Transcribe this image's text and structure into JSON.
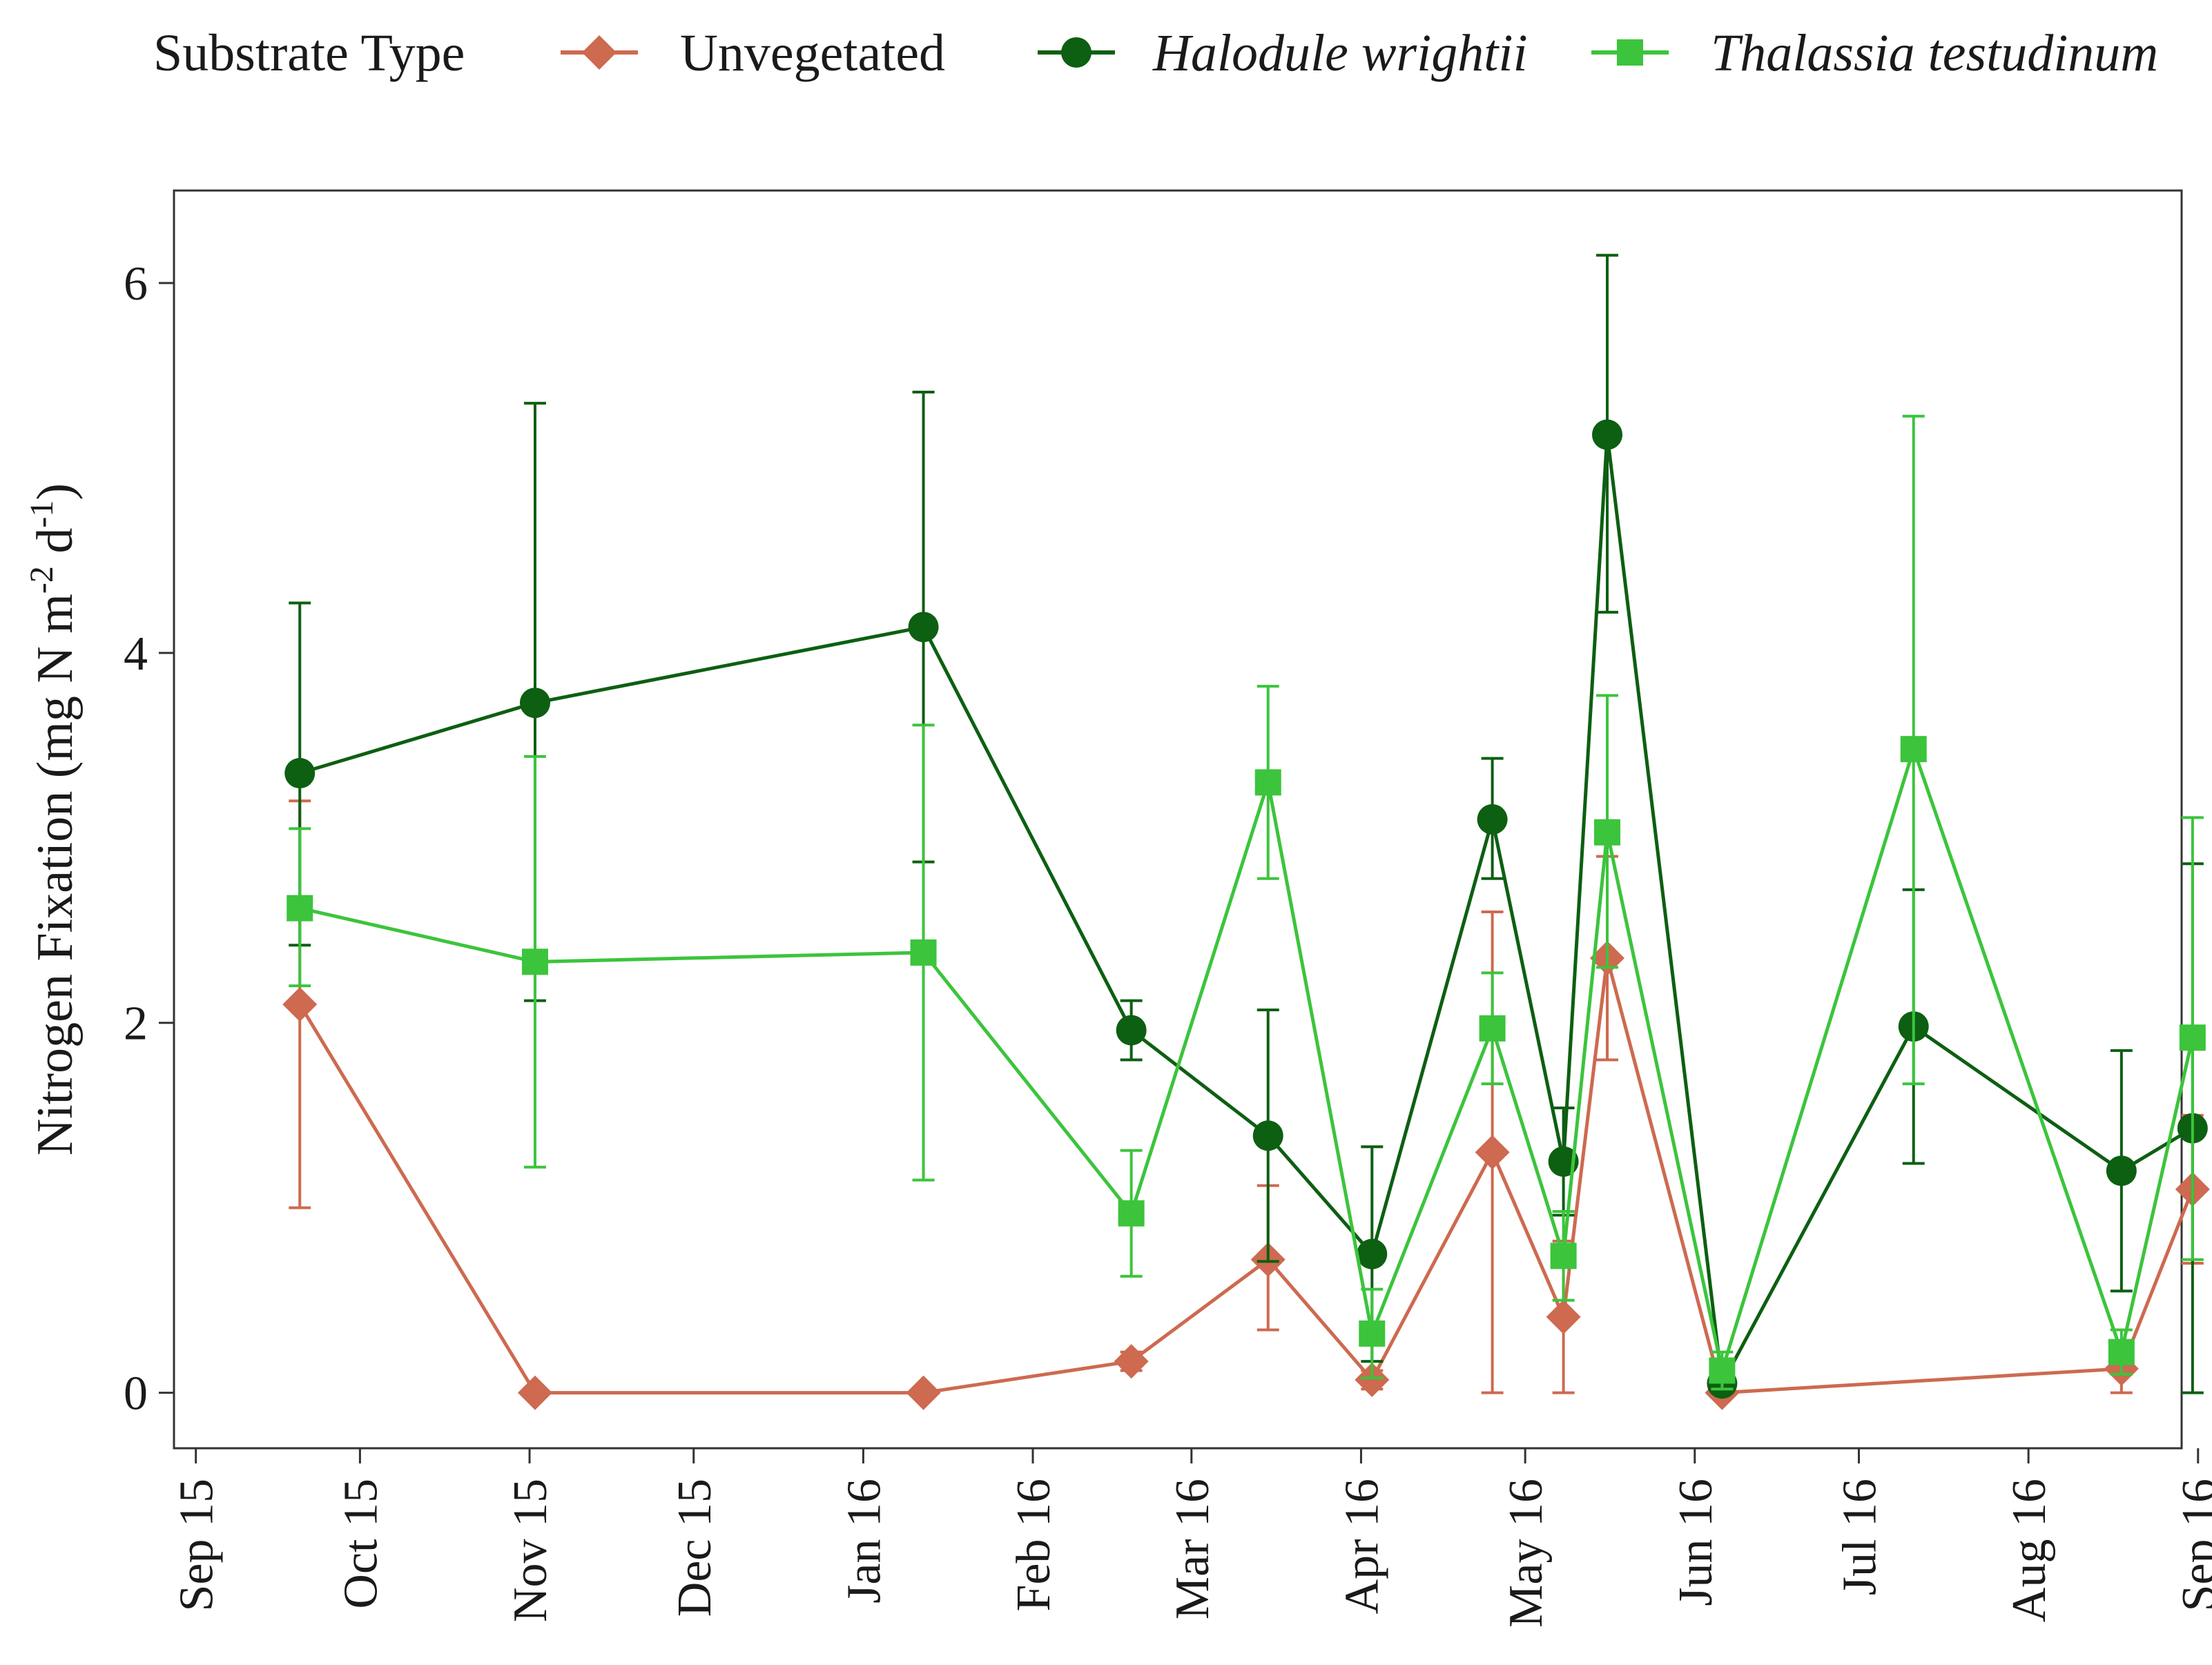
{
  "chart_data": {
    "type": "line",
    "title": "",
    "xlabel": "",
    "ylabel": "Nitrogen Fixation (mg N m",
    "ylabel_sup1": "-2",
    "ylabel_mid": " d",
    "ylabel_sup2": "-1",
    "ylabel_end": ")",
    "ylim": [
      -0.3,
      6.5
    ],
    "yticks": [
      0,
      2,
      4,
      6
    ],
    "x_range_days": [
      -4,
      363
    ],
    "x_unit": "days since Sep 1 2015",
    "x_ticks": [
      {
        "label": "Sep 15",
        "day": 0
      },
      {
        "label": "Oct 15",
        "day": 30
      },
      {
        "label": "Nov 15",
        "day": 61
      },
      {
        "label": "Dec 15",
        "day": 91
      },
      {
        "label": "Jan 16",
        "day": 122
      },
      {
        "label": "Feb 16",
        "day": 153
      },
      {
        "label": "Mar 16",
        "day": 182
      },
      {
        "label": "Apr 16",
        "day": 213
      },
      {
        "label": "May 16",
        "day": 243
      },
      {
        "label": "Jun 16",
        "day": 274
      },
      {
        "label": "Jul 16",
        "day": 304
      },
      {
        "label": "Aug 16",
        "day": 335
      },
      {
        "label": "Sep 16",
        "day": 366
      }
    ],
    "legend": {
      "title": "Substrate Type",
      "position": "top"
    },
    "series": [
      {
        "name": "Unvegetated",
        "italic": false,
        "color": "#cd6a50",
        "marker": "diamond",
        "x": [
          19,
          62,
          133,
          171,
          196,
          215,
          237,
          250,
          258,
          279,
          352,
          365
        ],
        "values": [
          2.1,
          0.0,
          0.0,
          0.17,
          0.72,
          0.07,
          1.3,
          0.41,
          2.35,
          0.0,
          0.13,
          1.1
        ],
        "err_low": [
          1.0,
          0.0,
          0.0,
          0.12,
          0.34,
          0.02,
          0.0,
          0.0,
          1.8,
          0.0,
          0.0,
          0.7
        ],
        "err_high": [
          3.2,
          0.0,
          0.0,
          0.22,
          1.12,
          0.12,
          2.6,
          0.82,
          2.9,
          0.0,
          0.26,
          1.5
        ]
      },
      {
        "name": "Halodule wrightii",
        "italic": true,
        "color": "#0d5f12",
        "marker": "circle",
        "x": [
          19,
          62,
          133,
          171,
          196,
          215,
          237,
          250,
          258,
          279,
          314,
          352,
          365
        ],
        "values": [
          3.35,
          3.73,
          4.14,
          1.96,
          1.39,
          0.75,
          3.1,
          1.25,
          5.18,
          0.05,
          1.98,
          1.2,
          1.43
        ],
        "err_low": [
          2.42,
          2.12,
          2.87,
          1.8,
          0.71,
          0.17,
          2.78,
          0.96,
          4.22,
          0.0,
          1.24,
          0.55,
          0.0
        ],
        "err_high": [
          4.27,
          5.35,
          5.41,
          2.12,
          2.07,
          1.33,
          3.43,
          1.54,
          6.15,
          0.1,
          2.72,
          1.85,
          2.86
        ]
      },
      {
        "name": "Thalassia testudinum",
        "italic": true,
        "color": "#3cc43c",
        "marker": "square",
        "x": [
          19,
          62,
          133,
          171,
          196,
          215,
          237,
          250,
          258,
          279,
          314,
          352,
          365
        ],
        "values": [
          2.62,
          2.33,
          2.38,
          0.97,
          3.3,
          0.32,
          1.97,
          0.74,
          3.03,
          0.12,
          3.48,
          0.22,
          1.92
        ],
        "err_low": [
          2.2,
          1.22,
          1.15,
          0.63,
          2.78,
          0.08,
          1.67,
          0.5,
          2.3,
          0.02,
          1.67,
          0.1,
          0.72
        ],
        "err_high": [
          3.05,
          3.44,
          3.61,
          1.31,
          3.82,
          0.56,
          2.27,
          0.98,
          3.77,
          0.22,
          5.28,
          0.34,
          3.11
        ]
      }
    ]
  }
}
